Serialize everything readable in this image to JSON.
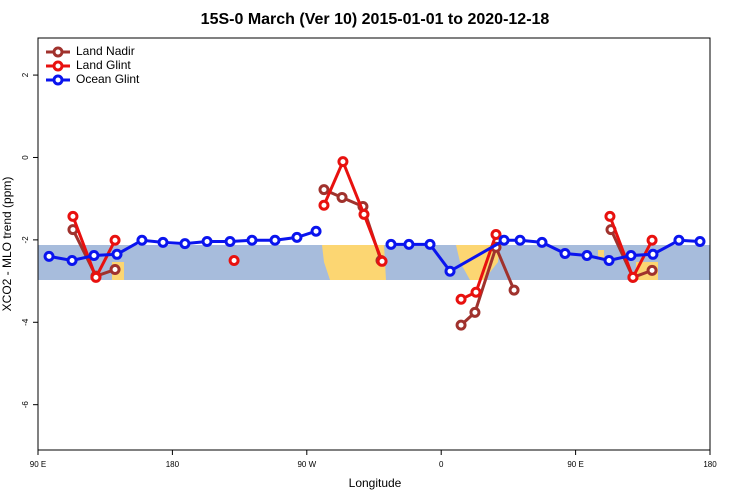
{
  "chart_data": {
    "type": "line",
    "title": "15S-0 March (Ver 10)   2015-01-01 to 2020-12-18",
    "xlabel": "Longitude",
    "ylabel": "XCO2 - MLO trend (ppm)",
    "xlim": [
      90,
      540
    ],
    "ylim": [
      -7.1,
      2.9
    ],
    "xticks": [
      {
        "value": 90,
        "label": "90 E"
      },
      180,
      {
        "value": 270,
        "label": "90 W"
      },
      {
        "value": 360,
        "label": "0"
      },
      {
        "value": 450,
        "label": "90 E"
      },
      {
        "value": 540,
        "label": "180"
      }
    ],
    "yticks": [
      2,
      0,
      -2,
      -4,
      -6
    ],
    "legend": "top-left",
    "series": [
      {
        "name": "Land Nadir",
        "color": "#a0322d",
        "x": [
          113.4,
          128.8,
          141.6,
          null,
          281.5,
          293.6,
          307.6,
          319.7,
          null,
          373.3,
          382.6,
          396.7,
          408.8,
          null,
          473.7,
          488.4,
          501.2
        ],
        "values": [
          -1.75,
          -2.88,
          -2.72,
          null,
          -0.78,
          -0.97,
          -1.19,
          -2.5,
          null,
          -4.07,
          -3.76,
          -2.18,
          -3.22,
          null,
          -1.75,
          -2.91,
          -2.74
        ]
      },
      {
        "name": "Land Glint",
        "color": "#e8110f",
        "x": [
          113.4,
          128.8,
          141.6,
          null,
          221.3,
          null,
          281.5,
          294.2,
          308.3,
          320.4,
          null,
          373.3,
          383.3,
          396.7,
          null,
          473.0,
          488.4,
          501.2
        ],
        "values": [
          -1.43,
          -2.91,
          -2.01,
          null,
          -2.5,
          null,
          -1.16,
          -0.1,
          -1.38,
          -2.52,
          null,
          -3.44,
          -3.27,
          -1.87,
          null,
          -1.43,
          -2.91,
          -2.01
        ]
      },
      {
        "name": "Ocean Glint",
        "color": "#0a14ee",
        "x": [
          97.4,
          112.8,
          127.5,
          142.9,
          159.6,
          173.7,
          188.4,
          203.2,
          218.6,
          233.3,
          248.7,
          263.4,
          276.2,
          null,
          326.4,
          338.4,
          352.5,
          365.9,
          402.1,
          412.8,
          427.5,
          442.9,
          457.6,
          472.4,
          487.1,
          501.8,
          519.2,
          533.3
        ],
        "values": [
          -2.4,
          -2.5,
          -2.38,
          -2.35,
          -2.01,
          -2.06,
          -2.09,
          -2.04,
          -2.04,
          -2.01,
          -2.01,
          -1.94,
          -1.79,
          null,
          -2.11,
          -2.11,
          -2.11,
          -2.76,
          -2.01,
          -2.01,
          -2.06,
          -2.33,
          -2.38,
          -2.5,
          -2.38,
          -2.35,
          -2.01,
          -2.04
        ]
      }
    ]
  }
}
